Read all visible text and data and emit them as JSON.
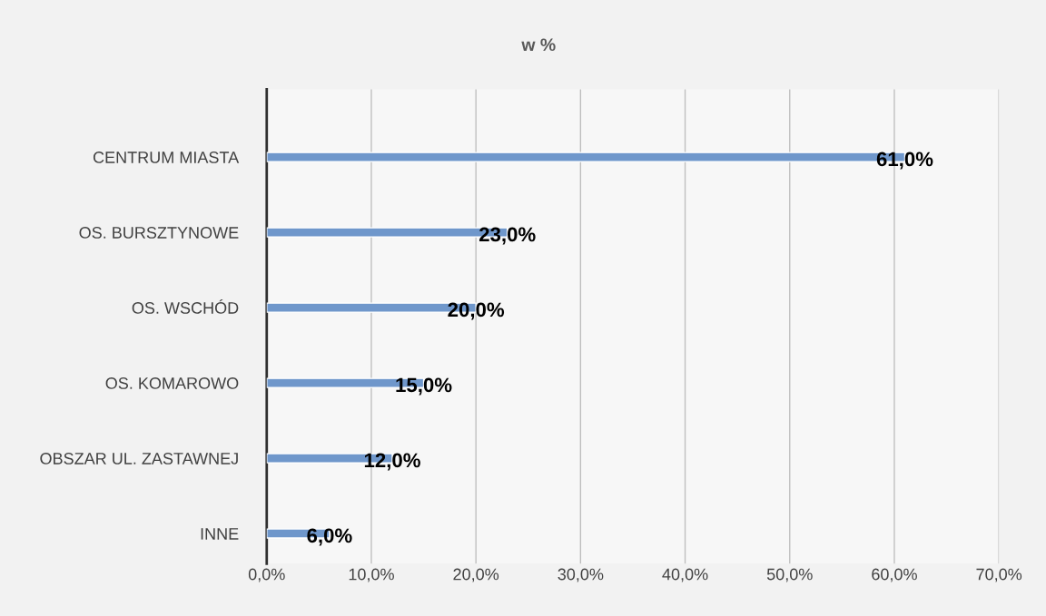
{
  "chart_data": {
    "type": "bar",
    "orientation": "horizontal",
    "title": "w %",
    "categories": [
      "CENTRUM MIASTA",
      "OS. BURSZTYNOWE",
      "OS. WSCHÓD",
      "OS. KOMAROWO",
      "OBSZAR UL. ZASTAWNEJ",
      "INNE"
    ],
    "values": [
      61.0,
      23.0,
      20.0,
      15.0,
      12.0,
      6.0
    ],
    "value_labels": [
      "61,0%",
      "23,0%",
      "20,0%",
      "15,0%",
      "12,0%",
      "6,0%"
    ],
    "color": "#6f97cb",
    "xlim": [
      0,
      70
    ],
    "xticks": [
      {
        "value": 0,
        "label": "0,0%"
      },
      {
        "value": 10,
        "label": "10,0%"
      },
      {
        "value": 20,
        "label": "20,0%"
      },
      {
        "value": 30,
        "label": "30,0%"
      },
      {
        "value": 40,
        "label": "40,0%"
      },
      {
        "value": 50,
        "label": "50,0%"
      },
      {
        "value": 60,
        "label": "60,0%"
      },
      {
        "value": 70,
        "label": "70,0%"
      }
    ],
    "grid": "x",
    "legend": false
  }
}
